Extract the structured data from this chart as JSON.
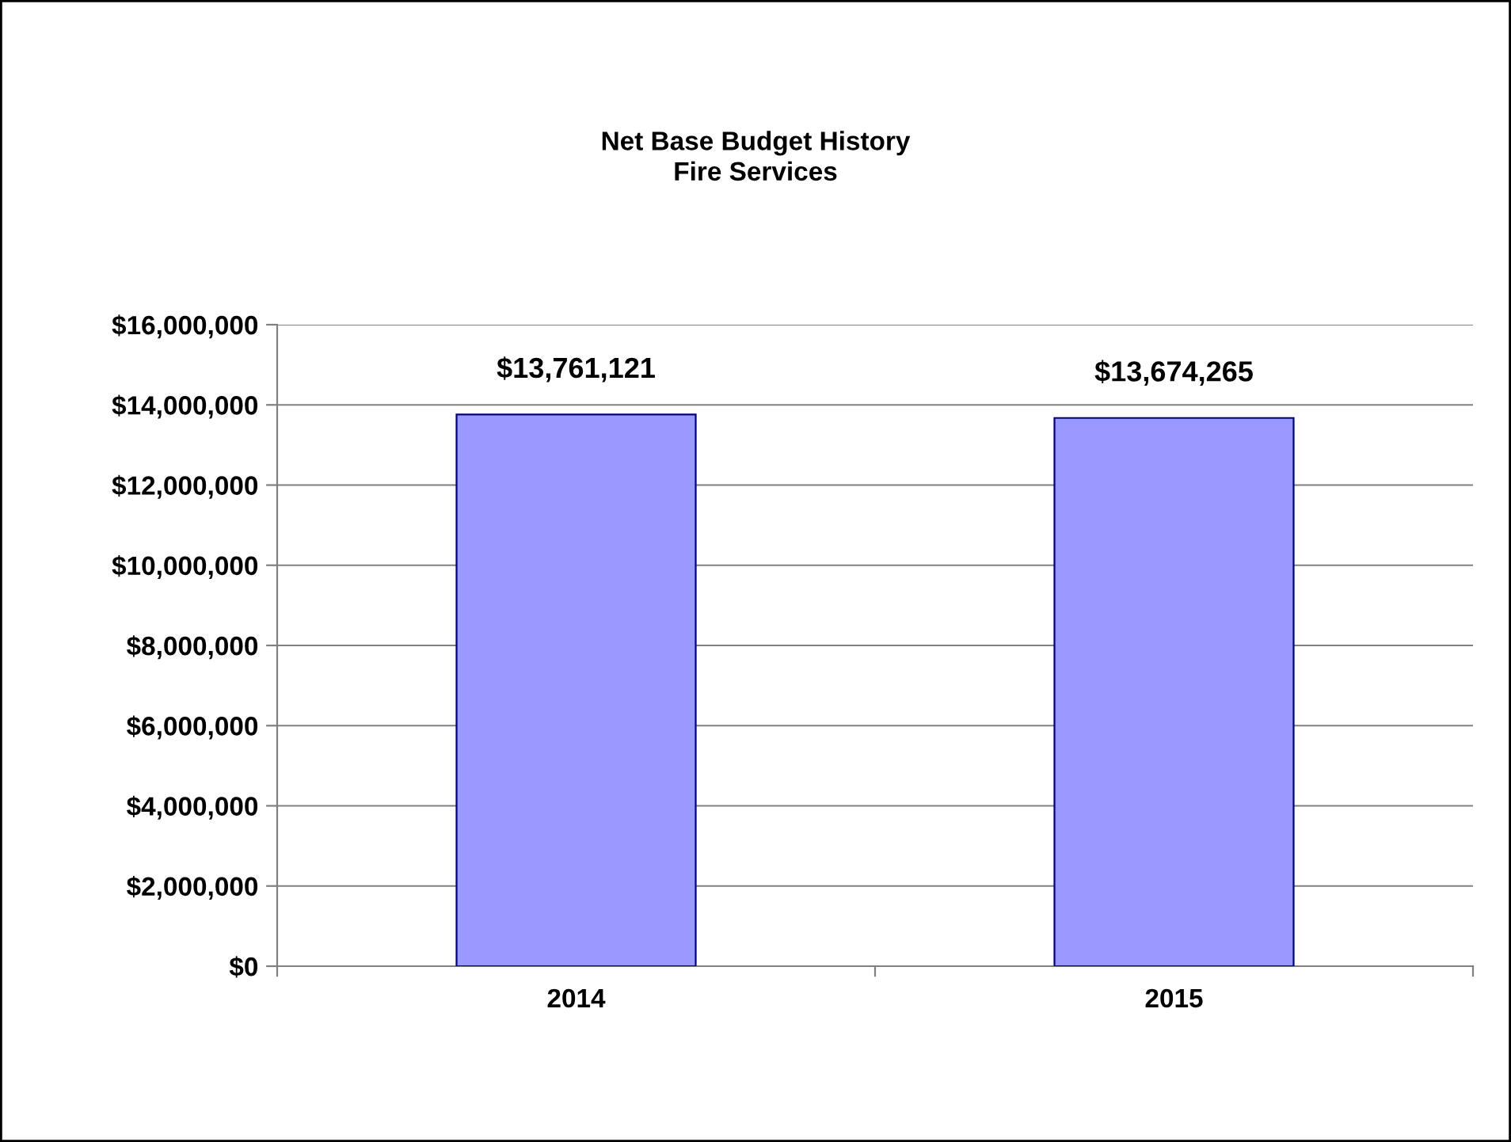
{
  "chart_data": {
    "type": "bar",
    "title": "Net Base Budget History\nFire Services",
    "categories": [
      "2014",
      "2015"
    ],
    "values": [
      13761121,
      13674265
    ],
    "value_labels": [
      "$13,761,121",
      "$13,674,265"
    ],
    "color": "#9999ff",
    "ylim": [
      0,
      16000000
    ],
    "yticks": [
      {
        "value": 0,
        "label": "$0"
      },
      {
        "value": 2000000,
        "label": "$2,000,000"
      },
      {
        "value": 4000000,
        "label": "$4,000,000"
      },
      {
        "value": 6000000,
        "label": "$6,000,000"
      },
      {
        "value": 8000000,
        "label": "$8,000,000"
      },
      {
        "value": 10000000,
        "label": "$10,000,000"
      },
      {
        "value": 12000000,
        "label": "$12,000,000"
      },
      {
        "value": 14000000,
        "label": "$14,000,000"
      },
      {
        "value": 16000000,
        "label": "$16,000,000"
      }
    ],
    "grid": "y",
    "legend": false
  }
}
